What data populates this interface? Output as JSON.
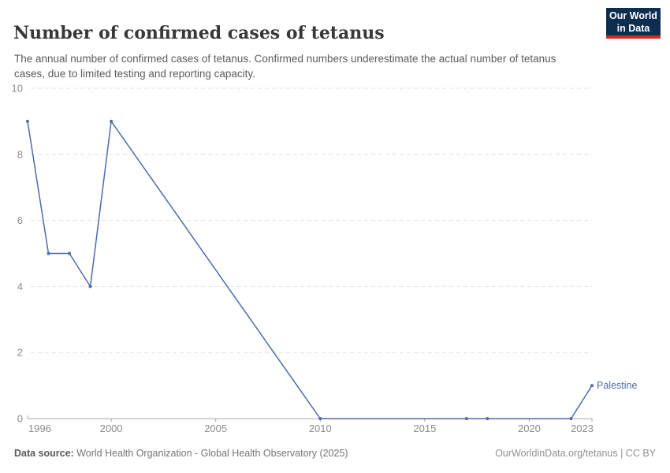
{
  "header": {
    "title": "Number of confirmed cases of tetanus",
    "subtitle": "The annual number of confirmed cases of tetanus. Confirmed numbers underestimate the actual number of tetanus cases, due to limited testing and reporting capacity.",
    "logo": {
      "line1": "Our World",
      "line2": "in Data"
    }
  },
  "chart_data": {
    "type": "line",
    "title": "Number of confirmed cases of tetanus",
    "xlabel": "",
    "ylabel": "",
    "xlim": [
      1996,
      2023
    ],
    "ylim": [
      0,
      10
    ],
    "xticks": [
      1996,
      2000,
      2005,
      2010,
      2015,
      2020,
      2023
    ],
    "yticks": [
      0,
      2,
      4,
      6,
      8,
      10
    ],
    "grid": "horizontal-dashed",
    "legend_position": "end-of-line-label",
    "series": [
      {
        "name": "Palestine",
        "color": "#4C6CA8",
        "points": [
          {
            "year": 1996,
            "value": 9
          },
          {
            "year": 1997,
            "value": 5
          },
          {
            "year": 1998,
            "value": 5
          },
          {
            "year": 1999,
            "value": 4
          },
          {
            "year": 2000,
            "value": 9
          },
          {
            "year": 2010,
            "value": 0
          },
          {
            "year": 2017,
            "value": 0
          },
          {
            "year": 2018,
            "value": 0
          },
          {
            "year": 2022,
            "value": 0
          },
          {
            "year": 2023,
            "value": 1
          }
        ]
      }
    ]
  },
  "colors": {
    "series_blue": "#4C6CA8",
    "grid_line": "#e2e2e2",
    "axis_line": "#a8a8a8",
    "tick_label": "#8c8c8c",
    "logo_bg": "#0d2e51",
    "logo_accent": "#d42b20"
  },
  "footer": {
    "source_label": "Data source:",
    "source_text": "World Health Organization - Global Health Observatory (2025)",
    "right_text": "OurWorldinData.org/tetanus | CC BY"
  }
}
